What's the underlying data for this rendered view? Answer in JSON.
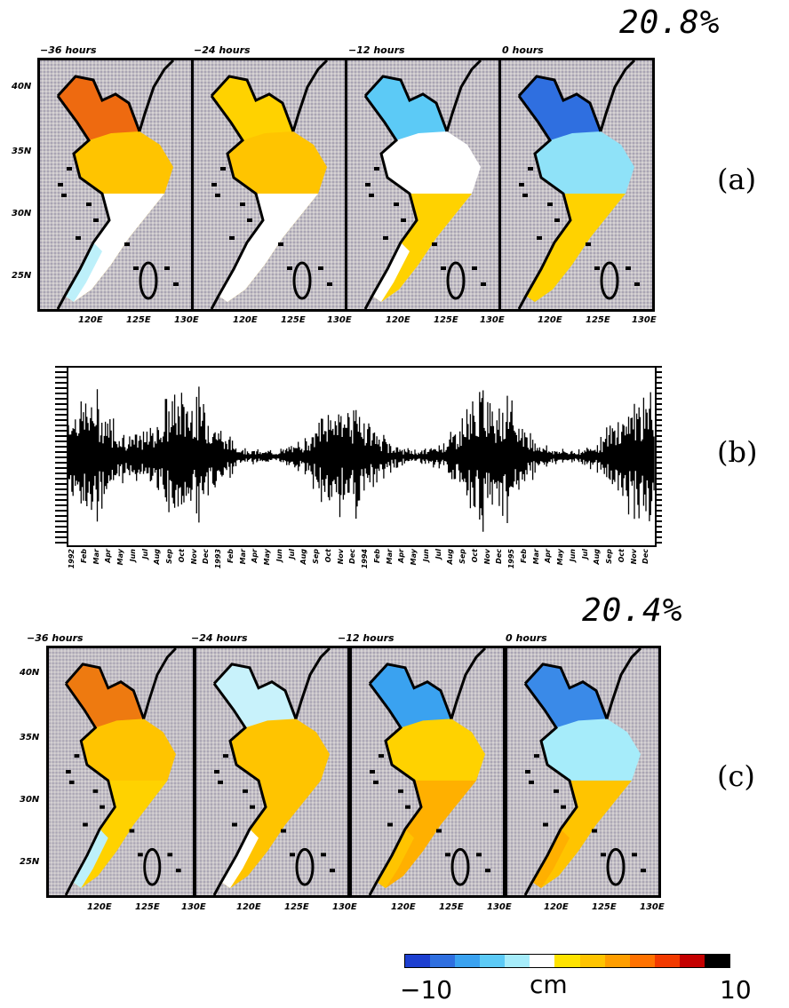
{
  "section_a": {
    "variance": "20.8%",
    "label": "(a)",
    "panels": [
      {
        "title": "−36 hours",
        "lon_ticks": [
          "120E",
          "125E",
          "130E"
        ]
      },
      {
        "title": "−24 hours",
        "lon_ticks": [
          "120E",
          "125E",
          "130E"
        ]
      },
      {
        "title": "−12 hours",
        "lon_ticks": [
          "120E",
          "125E",
          "130E"
        ]
      },
      {
        "title": "0 hours",
        "lon_ticks": [
          "120E",
          "125E",
          "130E"
        ]
      }
    ],
    "lat_ticks": [
      "40N",
      "35N",
      "30N",
      "25N"
    ]
  },
  "section_b": {
    "label": "(b)",
    "x_ticks": [
      "1992",
      "Feb",
      "Mar",
      "Apr",
      "May",
      "Jun",
      "Jul",
      "Aug",
      "Sep",
      "Oct",
      "Nov",
      "Dec",
      "1993",
      "Feb",
      "Mar",
      "Apr",
      "May",
      "Jun",
      "Jul",
      "Aug",
      "Sep",
      "Oct",
      "Nov",
      "Dec",
      "1994",
      "Feb",
      "Mar",
      "Apr",
      "May",
      "Jun",
      "Jul",
      "Aug",
      "Sep",
      "Oct",
      "Nov",
      "Dec",
      "1995",
      "Feb",
      "Mar",
      "Apr",
      "May",
      "Jun",
      "Jul",
      "Aug",
      "Sep",
      "Oct",
      "Nov",
      "Dec"
    ]
  },
  "section_c": {
    "variance": "20.4%",
    "label": "(c)",
    "panels": [
      {
        "title": "−36 hours",
        "lon_ticks": [
          "120E",
          "125E",
          "130E"
        ]
      },
      {
        "title": "−24 hours",
        "lon_ticks": [
          "120E",
          "125E",
          "130E"
        ]
      },
      {
        "title": "−12 hours",
        "lon_ticks": [
          "120E",
          "125E",
          "130E"
        ]
      },
      {
        "title": "0 hours",
        "lon_ticks": [
          "120E",
          "125E",
          "130E"
        ]
      }
    ],
    "lat_ticks": [
      "40N",
      "35N",
      "30N",
      "25N"
    ]
  },
  "colorbar": {
    "min_label": "−10",
    "max_label": "10",
    "unit": "cm",
    "colors": [
      "#1d3fd0",
      "#2f6fe0",
      "#3aa2f0",
      "#5ccaf6",
      "#a6ecfa",
      "#ffffff",
      "#ffe300",
      "#ffc400",
      "#ff9e00",
      "#ff7200",
      "#f23a00",
      "#c40000",
      "#000000"
    ]
  },
  "fields": {
    "a": [
      {
        "north": "#ee6a10",
        "mid": "#ffc400",
        "south": "#ffffff",
        "sw": "#bdf0fa"
      },
      {
        "north": "#ffd200",
        "mid": "#ffc400",
        "south": "#ffffff",
        "sw": "#ffffff"
      },
      {
        "north": "#5ccaf6",
        "mid": "#ffffff",
        "south": "#ffd200",
        "sw": "#ffffff"
      },
      {
        "north": "#2f6fe0",
        "mid": "#8fe2f8",
        "south": "#ffd200",
        "sw": "#ffd200"
      }
    ],
    "c": [
      {
        "north": "#ee7a10",
        "mid": "#ffc400",
        "south": "#ffd200",
        "sw": "#bdf0fa"
      },
      {
        "north": "#c8f2fb",
        "mid": "#ffc400",
        "south": "#ffc400",
        "sw": "#ffffff"
      },
      {
        "north": "#3aa2f0",
        "mid": "#ffd200",
        "south": "#ffb000",
        "sw": "#ffc400"
      },
      {
        "north": "#3a8ae8",
        "mid": "#a6ecfa",
        "south": "#ffc400",
        "sw": "#ffb000"
      }
    ]
  }
}
